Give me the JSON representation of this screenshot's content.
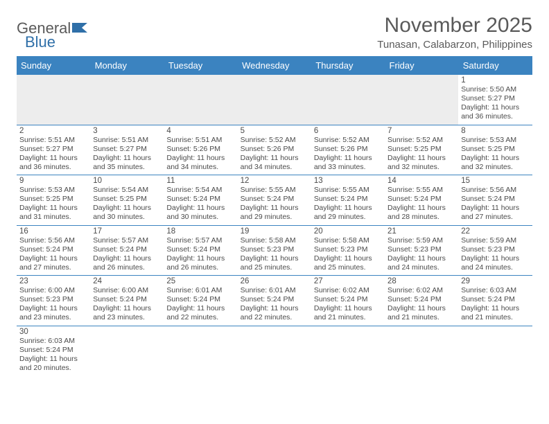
{
  "logo": {
    "text1": "General",
    "text2": "Blue"
  },
  "title": "November 2025",
  "subtitle": "Tunasan, Calabarzon, Philippines",
  "colors": {
    "header_bg": "#3b83c0",
    "header_fg": "#ffffff",
    "divider": "#3b83c0",
    "text": "#4a4a4a",
    "title": "#5a5a5a",
    "empty_bg": "#ededed",
    "logo_accent": "#2f6fa8"
  },
  "weekdays": [
    "Sunday",
    "Monday",
    "Tuesday",
    "Wednesday",
    "Thursday",
    "Friday",
    "Saturday"
  ],
  "weeks": [
    [
      null,
      null,
      null,
      null,
      null,
      null,
      {
        "n": "1",
        "sunrise": "5:50 AM",
        "sunset": "5:27 PM",
        "daylight": "11 hours and 36 minutes."
      }
    ],
    [
      {
        "n": "2",
        "sunrise": "5:51 AM",
        "sunset": "5:27 PM",
        "daylight": "11 hours and 36 minutes."
      },
      {
        "n": "3",
        "sunrise": "5:51 AM",
        "sunset": "5:27 PM",
        "daylight": "11 hours and 35 minutes."
      },
      {
        "n": "4",
        "sunrise": "5:51 AM",
        "sunset": "5:26 PM",
        "daylight": "11 hours and 34 minutes."
      },
      {
        "n": "5",
        "sunrise": "5:52 AM",
        "sunset": "5:26 PM",
        "daylight": "11 hours and 34 minutes."
      },
      {
        "n": "6",
        "sunrise": "5:52 AM",
        "sunset": "5:26 PM",
        "daylight": "11 hours and 33 minutes."
      },
      {
        "n": "7",
        "sunrise": "5:52 AM",
        "sunset": "5:25 PM",
        "daylight": "11 hours and 32 minutes."
      },
      {
        "n": "8",
        "sunrise": "5:53 AM",
        "sunset": "5:25 PM",
        "daylight": "11 hours and 32 minutes."
      }
    ],
    [
      {
        "n": "9",
        "sunrise": "5:53 AM",
        "sunset": "5:25 PM",
        "daylight": "11 hours and 31 minutes."
      },
      {
        "n": "10",
        "sunrise": "5:54 AM",
        "sunset": "5:25 PM",
        "daylight": "11 hours and 30 minutes."
      },
      {
        "n": "11",
        "sunrise": "5:54 AM",
        "sunset": "5:24 PM",
        "daylight": "11 hours and 30 minutes."
      },
      {
        "n": "12",
        "sunrise": "5:55 AM",
        "sunset": "5:24 PM",
        "daylight": "11 hours and 29 minutes."
      },
      {
        "n": "13",
        "sunrise": "5:55 AM",
        "sunset": "5:24 PM",
        "daylight": "11 hours and 29 minutes."
      },
      {
        "n": "14",
        "sunrise": "5:55 AM",
        "sunset": "5:24 PM",
        "daylight": "11 hours and 28 minutes."
      },
      {
        "n": "15",
        "sunrise": "5:56 AM",
        "sunset": "5:24 PM",
        "daylight": "11 hours and 27 minutes."
      }
    ],
    [
      {
        "n": "16",
        "sunrise": "5:56 AM",
        "sunset": "5:24 PM",
        "daylight": "11 hours and 27 minutes."
      },
      {
        "n": "17",
        "sunrise": "5:57 AM",
        "sunset": "5:24 PM",
        "daylight": "11 hours and 26 minutes."
      },
      {
        "n": "18",
        "sunrise": "5:57 AM",
        "sunset": "5:24 PM",
        "daylight": "11 hours and 26 minutes."
      },
      {
        "n": "19",
        "sunrise": "5:58 AM",
        "sunset": "5:23 PM",
        "daylight": "11 hours and 25 minutes."
      },
      {
        "n": "20",
        "sunrise": "5:58 AM",
        "sunset": "5:23 PM",
        "daylight": "11 hours and 25 minutes."
      },
      {
        "n": "21",
        "sunrise": "5:59 AM",
        "sunset": "5:23 PM",
        "daylight": "11 hours and 24 minutes."
      },
      {
        "n": "22",
        "sunrise": "5:59 AM",
        "sunset": "5:23 PM",
        "daylight": "11 hours and 24 minutes."
      }
    ],
    [
      {
        "n": "23",
        "sunrise": "6:00 AM",
        "sunset": "5:23 PM",
        "daylight": "11 hours and 23 minutes."
      },
      {
        "n": "24",
        "sunrise": "6:00 AM",
        "sunset": "5:24 PM",
        "daylight": "11 hours and 23 minutes."
      },
      {
        "n": "25",
        "sunrise": "6:01 AM",
        "sunset": "5:24 PM",
        "daylight": "11 hours and 22 minutes."
      },
      {
        "n": "26",
        "sunrise": "6:01 AM",
        "sunset": "5:24 PM",
        "daylight": "11 hours and 22 minutes."
      },
      {
        "n": "27",
        "sunrise": "6:02 AM",
        "sunset": "5:24 PM",
        "daylight": "11 hours and 21 minutes."
      },
      {
        "n": "28",
        "sunrise": "6:02 AM",
        "sunset": "5:24 PM",
        "daylight": "11 hours and 21 minutes."
      },
      {
        "n": "29",
        "sunrise": "6:03 AM",
        "sunset": "5:24 PM",
        "daylight": "11 hours and 21 minutes."
      }
    ],
    [
      {
        "n": "30",
        "sunrise": "6:03 AM",
        "sunset": "5:24 PM",
        "daylight": "11 hours and 20 minutes."
      },
      null,
      null,
      null,
      null,
      null,
      null
    ]
  ],
  "labels": {
    "sunrise": "Sunrise:",
    "sunset": "Sunset:",
    "daylight": "Daylight:"
  }
}
